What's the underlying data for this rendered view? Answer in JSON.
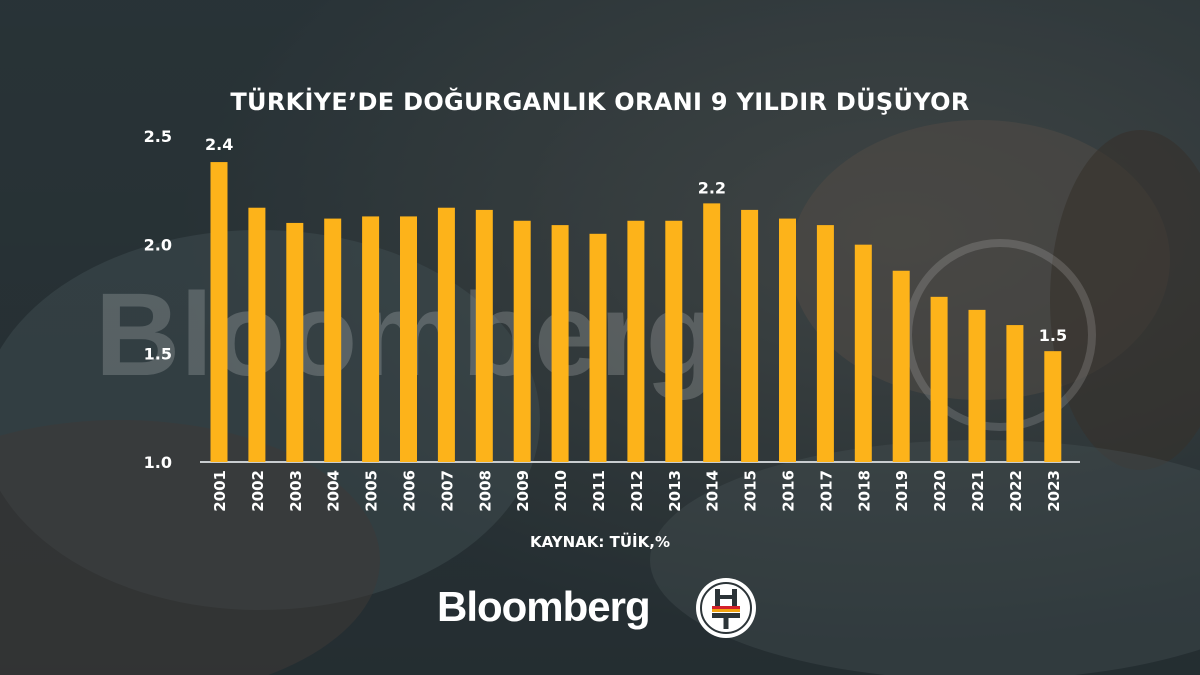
{
  "brand": {
    "name": "Bloomberg",
    "watermark": "Bloomberg",
    "logo_letters": "HT"
  },
  "colors": {
    "bar": "#fdb31a",
    "text": "#ffffff",
    "axis": "#c9cdd0",
    "logo_red": "#d3202b",
    "logo_orange": "#f2a30f"
  },
  "chart_data": {
    "type": "bar",
    "title": "TÜRKİYE’DE DOĞURGANLIK ORANI 9 YILDIR DÜŞÜYOR",
    "source": "KAYNAK: TÜİK,%",
    "categories": [
      "2001",
      "2002",
      "2003",
      "2004",
      "2005",
      "2006",
      "2007",
      "2008",
      "2009",
      "2010",
      "2011",
      "2012",
      "2013",
      "2014",
      "2015",
      "2016",
      "2017",
      "2018",
      "2019",
      "2020",
      "2021",
      "2022",
      "2023"
    ],
    "values": [
      2.38,
      2.17,
      2.1,
      2.12,
      2.13,
      2.13,
      2.17,
      2.16,
      2.11,
      2.09,
      2.05,
      2.11,
      2.11,
      2.19,
      2.16,
      2.12,
      2.09,
      2.0,
      1.88,
      1.76,
      1.7,
      1.63,
      1.51
    ],
    "data_labels": [
      {
        "category": "2001",
        "text": "2.4"
      },
      {
        "category": "2014",
        "text": "2.2"
      },
      {
        "category": "2023",
        "text": "1.5"
      }
    ],
    "ylim": [
      1.0,
      2.5
    ],
    "yticks": [
      1.0,
      1.5,
      2.0,
      2.5
    ],
    "ytick_labels": [
      "1.0",
      "1.5",
      "2.0",
      "2.5"
    ],
    "xlabel": "",
    "ylabel": "",
    "grid": false,
    "legend": "none"
  }
}
